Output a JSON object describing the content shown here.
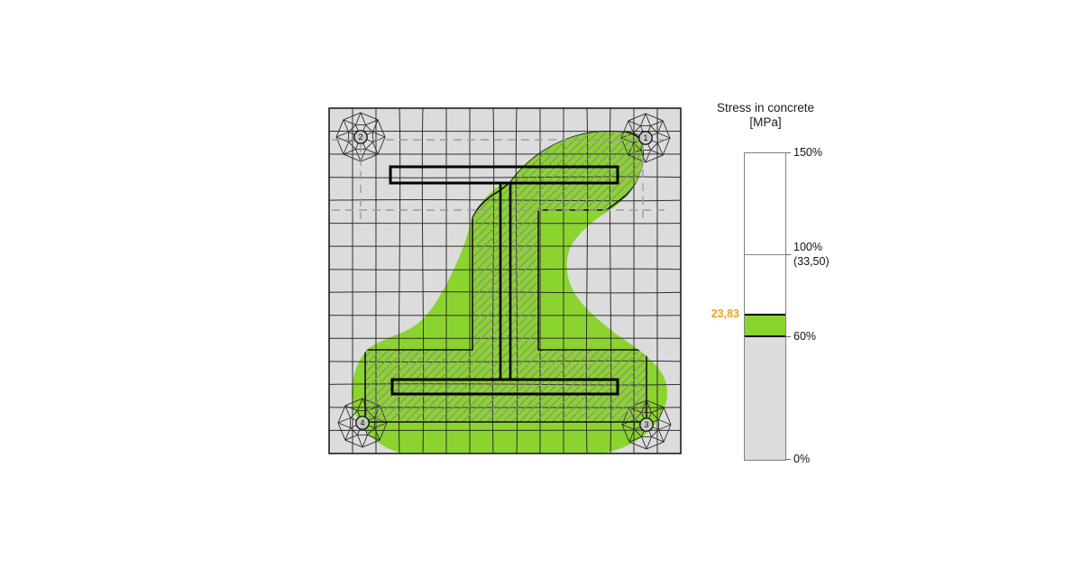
{
  "legend": {
    "title_line1": "Stress in concrete",
    "title_line2": "[MPa]",
    "scale": {
      "max_pct": "150%",
      "ref_pct": "100%",
      "ref_value": "(33,50)",
      "mid_pct": "60%",
      "min_pct": "0%",
      "current_value": "23,83",
      "unit": "MPa"
    },
    "colors": {
      "band_green": "#8BD42F",
      "band_gray": "#DCDCDC",
      "current_label_orange": "#F2A21E"
    }
  },
  "plot": {
    "nodes": [
      {
        "label": "1",
        "corner": "top-right"
      },
      {
        "label": "2",
        "corner": "top-left"
      },
      {
        "label": "3",
        "corner": "bottom-right"
      },
      {
        "label": "4",
        "corner": "bottom-left"
      }
    ],
    "colors": {
      "concrete_gray": "#DCDCDC",
      "stress_green": "#8BD42F",
      "mesh_line": "#2f2f2f",
      "hatch_line": "#8c8c8c",
      "dashed_reference": "#9c9c9c",
      "beam_outline": "#000000"
    }
  }
}
